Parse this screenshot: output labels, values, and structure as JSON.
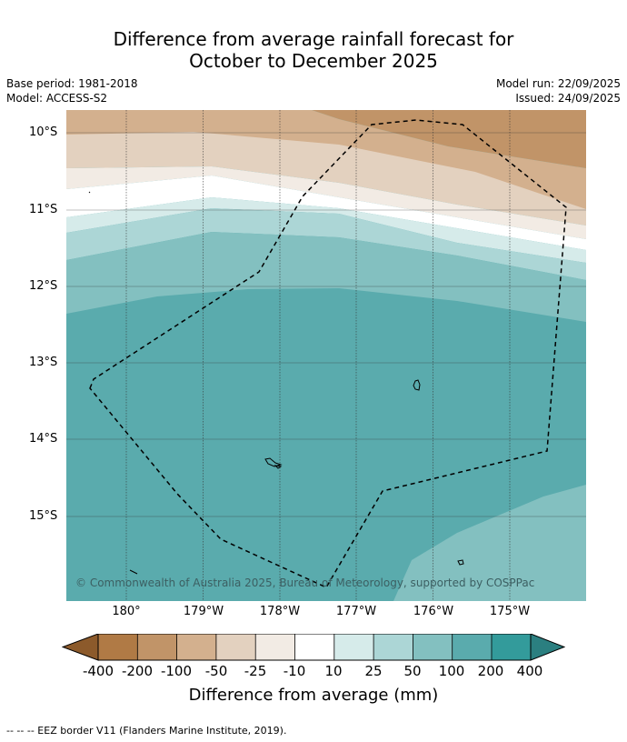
{
  "title": {
    "line1": "Difference from average rainfall forecast for",
    "line2": "October to December 2025"
  },
  "meta": {
    "base_period": "Base period: 1981-2018",
    "model": "Model: ACCESS-S2",
    "model_run": "Model run: 22/09/2025",
    "issued": "Issued: 24/09/2025"
  },
  "map": {
    "lat_labels": [
      "10°S",
      "11°S",
      "12°S",
      "13°S",
      "14°S",
      "15°S"
    ],
    "lon_labels": [
      "180°",
      "179°W",
      "178°W",
      "177°W",
      "176°W",
      "175°W"
    ],
    "copyright": "© Commonwealth of Australia 2025, Bureau of Meteorology, supported by COSPPac",
    "region": "EEZ border"
  },
  "colorbar": {
    "labels": [
      "-400",
      "-200",
      "-100",
      "-50",
      "-25",
      "-10",
      "10",
      "25",
      "50",
      "100",
      "200",
      "400"
    ],
    "colors": [
      "#8c5a2b",
      "#b07a45",
      "#c19468",
      "#d3b08e",
      "#e3d1bf",
      "#f2ebe4",
      "#ffffff",
      "#d6ebea",
      "#acd6d6",
      "#83c0c0",
      "#5aabad",
      "#339b9b",
      "#2b7f80"
    ],
    "title": "Difference from average (mm)"
  },
  "footnote": "--  --  -- EEZ border V11 (Flanders Marine Institute, 2019)."
}
